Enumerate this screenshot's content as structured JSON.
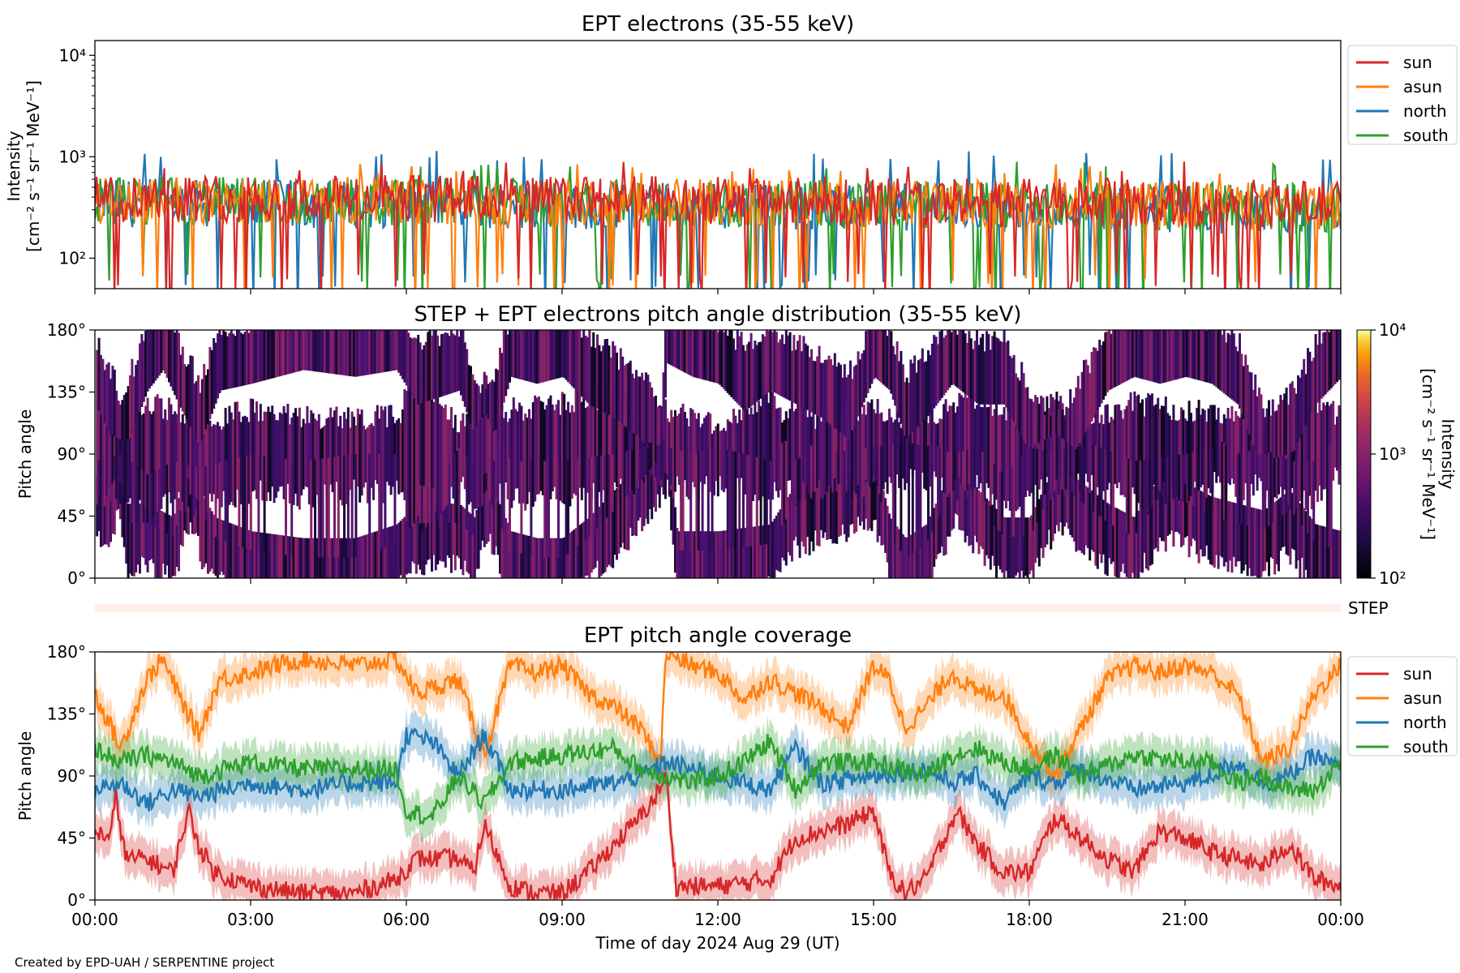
{
  "footer": {
    "credit": "Created by EPD-UAH / SERPENTINE project"
  },
  "colors": {
    "sun": "#d62728",
    "asun": "#ff7f0e",
    "north": "#1f77b4",
    "south": "#2ca02c",
    "step_bar": "#fdeee9"
  },
  "chart_data": [
    {
      "type": "line",
      "title": "EPT electrons (35-55 keV)",
      "ylabel_line1": "Intensity",
      "ylabel_line2": "[cm⁻² s⁻¹ sr⁻¹ MeV⁻¹]",
      "yscale": "log",
      "ylim": [
        50,
        14000
      ],
      "yticks": [
        {
          "value": 100,
          "label": "10²"
        },
        {
          "value": 1000,
          "label": "10³"
        },
        {
          "value": 10000,
          "label": "10⁴"
        }
      ],
      "xlim": [
        "2024-08-29 00:00",
        "2024-08-30 00:00"
      ],
      "legend": "outside-right",
      "series": [
        {
          "name": "sun",
          "color": "#d62728",
          "typical_value": 400,
          "approx_range": [
            50,
            900
          ]
        },
        {
          "name": "asun",
          "color": "#ff7f0e",
          "typical_value": 380,
          "approx_range": [
            50,
            850
          ]
        },
        {
          "name": "north",
          "color": "#1f77b4",
          "typical_value": 350,
          "approx_range": [
            50,
            1150
          ]
        },
        {
          "name": "south",
          "color": "#2ca02c",
          "typical_value": 370,
          "approx_range": [
            50,
            900
          ]
        }
      ]
    },
    {
      "type": "heatmap",
      "title": "STEP + EPT electrons pitch angle distribution (35-55 keV)",
      "ylabel": "Pitch angle",
      "ylim": [
        0,
        180
      ],
      "yticks": [
        "0°",
        "45°",
        "90°",
        "135°",
        "180°"
      ],
      "colormap": "inferno",
      "colorbar": {
        "scale": "log",
        "range": [
          100,
          10000
        ],
        "label_line1": "Intensity",
        "label_line2": "[cm⁻² s⁻¹ sr⁻¹ MeV⁻¹]",
        "ticks": [
          "10²",
          "10³",
          "10⁴"
        ]
      },
      "step_label": "STEP",
      "typical_intensity": 300,
      "coverage_source": "EPT telescope pitch angles (panel 3)"
    },
    {
      "type": "line",
      "title": "EPT pitch angle coverage",
      "ylabel": "Pitch angle",
      "ylim": [
        0,
        180
      ],
      "yticks": [
        "0°",
        "45°",
        "90°",
        "135°",
        "180°"
      ],
      "xlabel": "Time of day 2024 Aug 29 (UT)",
      "xticks": [
        "00:00",
        "03:00",
        "06:00",
        "09:00",
        "12:00",
        "15:00",
        "18:00",
        "21:00",
        "00:00"
      ],
      "x_unit": "hours",
      "legend": "outside-right",
      "series": [
        {
          "name": "sun",
          "color": "#d62728",
          "x": [
            0,
            0.3,
            0.4,
            0.6,
            1.0,
            1.5,
            1.8,
            2.0,
            2.3,
            3.0,
            4.0,
            5.0,
            5.8,
            6.2,
            7.0,
            7.3,
            7.5,
            8.0,
            8.5,
            9.0,
            9.5,
            10.0,
            10.5,
            10.8,
            11.0,
            11.2,
            12.0,
            13.0,
            13.5,
            14.0,
            14.5,
            15.0,
            15.3,
            15.6,
            16.0,
            16.3,
            16.6,
            17.0,
            17.5,
            18.0,
            18.5,
            19.0,
            19.5,
            20.0,
            20.5,
            21.0,
            21.5,
            22.0,
            22.5,
            23.0,
            23.5,
            24.0
          ],
          "values": [
            50,
            45,
            75,
            30,
            30,
            20,
            65,
            40,
            20,
            10,
            5,
            5,
            15,
            30,
            30,
            20,
            55,
            10,
            5,
            5,
            20,
            40,
            60,
            75,
            90,
            10,
            10,
            15,
            45,
            50,
            55,
            65,
            20,
            5,
            15,
            40,
            65,
            40,
            20,
            20,
            60,
            45,
            30,
            20,
            50,
            45,
            35,
            30,
            25,
            40,
            15,
            10
          ]
        },
        {
          "name": "asun",
          "color": "#ff7f0e",
          "x": [
            0,
            0.5,
            1.0,
            1.3,
            1.6,
            2.0,
            2.4,
            3.0,
            4.0,
            5.0,
            5.8,
            6.2,
            7.0,
            7.5,
            8.0,
            8.5,
            9.0,
            9.5,
            10.0,
            10.5,
            10.9,
            11.0,
            11.5,
            12.0,
            12.5,
            13.0,
            13.5,
            14.0,
            14.5,
            15.0,
            15.3,
            15.6,
            16.0,
            16.5,
            17.0,
            17.5,
            18.0,
            18.5,
            19.0,
            19.5,
            20.0,
            20.5,
            21.0,
            21.5,
            22.0,
            22.5,
            23.0,
            23.5,
            24.0
          ],
          "values": [
            150,
            110,
            160,
            175,
            150,
            120,
            160,
            165,
            175,
            170,
            175,
            150,
            160,
            105,
            170,
            165,
            170,
            150,
            140,
            125,
            100,
            180,
            170,
            165,
            145,
            160,
            150,
            140,
            125,
            170,
            160,
            125,
            140,
            165,
            150,
            150,
            115,
            90,
            125,
            160,
            170,
            165,
            170,
            165,
            150,
            100,
            110,
            150,
            170
          ]
        },
        {
          "name": "north",
          "color": "#1f77b4",
          "x": [
            0,
            0.5,
            1.0,
            1.5,
            2.0,
            3.0,
            4.0,
            5.0,
            5.8,
            6.0,
            6.5,
            7.0,
            7.5,
            8.0,
            9.0,
            10.0,
            10.5,
            11.0,
            11.5,
            12.0,
            12.5,
            13.0,
            13.5,
            14.0,
            15.0,
            16.0,
            16.5,
            17.0,
            17.5,
            18.0,
            18.5,
            19.0,
            20.0,
            21.0,
            21.5,
            22.0,
            22.5,
            23.0,
            23.5,
            24.0
          ],
          "values": [
            80,
            85,
            70,
            80,
            75,
            85,
            80,
            85,
            85,
            120,
            115,
            90,
            120,
            80,
            80,
            85,
            90,
            100,
            95,
            90,
            85,
            80,
            110,
            85,
            90,
            95,
            85,
            90,
            70,
            90,
            85,
            95,
            80,
            85,
            90,
            100,
            85,
            90,
            105,
            95
          ]
        },
        {
          "name": "south",
          "color": "#2ca02c",
          "x": [
            0,
            0.5,
            1.0,
            1.5,
            2.0,
            3.0,
            4.0,
            5.0,
            5.8,
            6.0,
            6.5,
            7.0,
            7.5,
            8.0,
            9.0,
            10.0,
            10.5,
            11.0,
            11.5,
            12.0,
            12.5,
            13.0,
            13.5,
            14.0,
            15.0,
            16.0,
            16.5,
            17.0,
            17.5,
            18.0,
            18.5,
            19.0,
            20.0,
            21.0,
            21.5,
            22.0,
            22.5,
            23.0,
            23.5,
            24.0
          ],
          "values": [
            110,
            100,
            105,
            100,
            90,
            100,
            95,
            95,
            95,
            65,
            60,
            90,
            70,
            100,
            105,
            110,
            95,
            90,
            85,
            90,
            100,
            115,
            80,
            100,
            100,
            90,
            105,
            110,
            100,
            95,
            105,
            90,
            105,
            100,
            100,
            85,
            90,
            80,
            80,
            100
          ]
        }
      ]
    }
  ]
}
